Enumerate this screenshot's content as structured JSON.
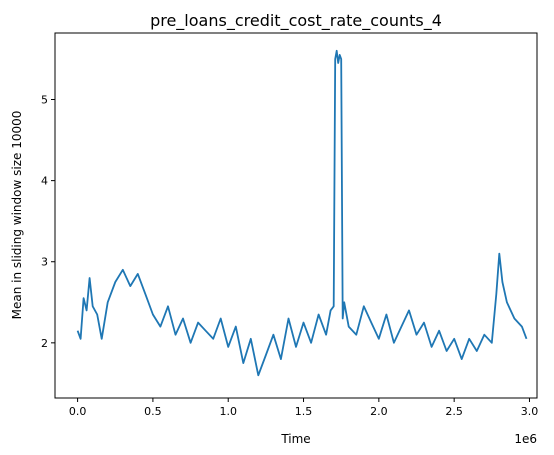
{
  "chart_data": {
    "type": "line",
    "title": "pre_loans_credit_cost_rate_counts_4",
    "xlabel": "Time",
    "ylabel": "Mean in sliding window size 10000",
    "x_offset_label": "1e6",
    "xlim": [
      -0.15,
      3.05
    ],
    "ylim": [
      1.32,
      5.82
    ],
    "x_ticks": [
      0.0,
      0.5,
      1.0,
      1.5,
      2.0,
      2.5,
      3.0
    ],
    "x_tick_labels": [
      "0.0",
      "0.5",
      "1.0",
      "1.5",
      "2.0",
      "2.5",
      "3.0"
    ],
    "y_ticks": [
      2,
      3,
      4,
      5
    ],
    "y_tick_labels": [
      "2",
      "3",
      "4",
      "5"
    ],
    "grid": false,
    "line_color": "#1f77b4",
    "series": [
      {
        "x": [
          0.0,
          0.02,
          0.04,
          0.06,
          0.08,
          0.1,
          0.13,
          0.16,
          0.2,
          0.25,
          0.3,
          0.35,
          0.4,
          0.45,
          0.5,
          0.55,
          0.6,
          0.65,
          0.7,
          0.75,
          0.8,
          0.85,
          0.9,
          0.95,
          1.0,
          1.05,
          1.1,
          1.15,
          1.2,
          1.25,
          1.3,
          1.35,
          1.4,
          1.45,
          1.5,
          1.55,
          1.6,
          1.65,
          1.68,
          1.7,
          1.71,
          1.72,
          1.73,
          1.74,
          1.75,
          1.76,
          1.77,
          1.8,
          1.85,
          1.9,
          1.95,
          2.0,
          2.05,
          2.1,
          2.15,
          2.2,
          2.25,
          2.3,
          2.35,
          2.4,
          2.45,
          2.5,
          2.55,
          2.6,
          2.65,
          2.7,
          2.75,
          2.78,
          2.8,
          2.82,
          2.85,
          2.9,
          2.95,
          2.98
        ],
        "y": [
          2.15,
          2.05,
          2.55,
          2.4,
          2.8,
          2.45,
          2.35,
          2.05,
          2.5,
          2.75,
          2.9,
          2.7,
          2.85,
          2.6,
          2.35,
          2.2,
          2.45,
          2.1,
          2.3,
          2.0,
          2.25,
          2.15,
          2.05,
          2.3,
          1.95,
          2.2,
          1.75,
          2.05,
          1.6,
          1.85,
          2.1,
          1.8,
          2.3,
          1.95,
          2.25,
          2.0,
          2.35,
          2.1,
          2.4,
          2.45,
          5.5,
          5.6,
          5.45,
          5.55,
          5.5,
          2.3,
          2.5,
          2.2,
          2.1,
          2.45,
          2.25,
          2.05,
          2.35,
          2.0,
          2.2,
          2.4,
          2.1,
          2.25,
          1.95,
          2.15,
          1.9,
          2.05,
          1.8,
          2.05,
          1.9,
          2.1,
          2.0,
          2.6,
          3.1,
          2.75,
          2.5,
          2.3,
          2.2,
          2.05
        ]
      }
    ]
  }
}
